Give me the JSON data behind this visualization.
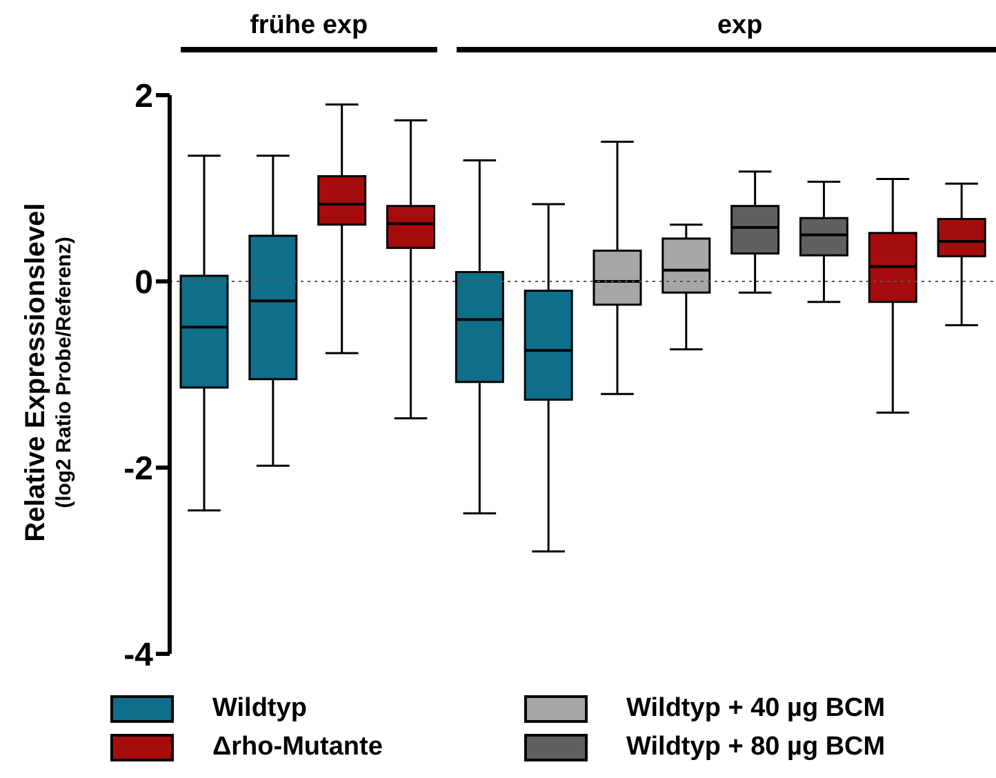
{
  "chart_data": {
    "type": "box",
    "ylabel": "Relative Expressionslevel\n(log2 Ratio Probe/Referenz)",
    "categories": [
      null,
      null,
      null,
      null,
      null,
      null,
      null,
      null,
      null,
      null,
      null,
      null
    ],
    "ylim": [
      -4,
      2
    ],
    "yticks": [
      -4,
      -2,
      0,
      2
    ],
    "tick_labels": "y",
    "legend": "bottom",
    "annotations": [
      "frühe exp",
      "exp"
    ],
    "ref_lines": [
      {
        "axis": "y",
        "value": 0,
        "line_style": "dotted",
        "color": "#555555"
      }
    ],
    "series": [
      {
        "name": "Wildtyp",
        "color": "#0e6f8a",
        "boxes": [
          {
            "low": -2.46,
            "q1": -1.14,
            "median": -0.49,
            "q3": 0.06,
            "high": 1.35
          },
          {
            "low": -1.98,
            "q1": -1.05,
            "median": -0.21,
            "q3": 0.49,
            "high": 1.35
          },
          null,
          null,
          {
            "low": -2.49,
            "q1": -1.08,
            "median": -0.41,
            "q3": 0.1,
            "high": 1.3
          },
          {
            "low": -2.9,
            "q1": -1.27,
            "median": -0.74,
            "q3": -0.1,
            "high": 0.83
          },
          null,
          null,
          null,
          null,
          null,
          null
        ]
      },
      {
        "name": "Δrho-Mutante",
        "color": "#a50d0d",
        "boxes": [
          null,
          null,
          {
            "low": -0.77,
            "q1": 0.61,
            "median": 0.83,
            "q3": 1.13,
            "high": 1.9
          },
          {
            "low": -1.47,
            "q1": 0.36,
            "median": 0.62,
            "q3": 0.81,
            "high": 1.73
          },
          null,
          null,
          null,
          null,
          null,
          null,
          {
            "low": -1.41,
            "q1": -0.22,
            "median": 0.16,
            "q3": 0.52,
            "high": 1.1
          },
          {
            "low": -0.47,
            "q1": 0.27,
            "median": 0.43,
            "q3": 0.67,
            "high": 1.05
          }
        ]
      },
      {
        "name": "Wildtyp + 40 µg BCM",
        "color": "#a6a6a6",
        "boxes": [
          null,
          null,
          null,
          null,
          null,
          null,
          {
            "low": -1.21,
            "q1": -0.25,
            "median": 0,
            "q3": 0.33,
            "high": 1.5
          },
          {
            "low": -0.73,
            "q1": -0.12,
            "median": 0.12,
            "q3": 0.46,
            "high": 0.61
          },
          null,
          null,
          null,
          null
        ]
      },
      {
        "name": "Wildtyp + 80 µg BCM",
        "color": "#606060",
        "boxes": [
          null,
          null,
          null,
          null,
          null,
          null,
          null,
          null,
          {
            "low": -0.12,
            "q1": 0.3,
            "median": 0.58,
            "q3": 0.81,
            "high": 1.18
          },
          {
            "low": -0.22,
            "q1": 0.28,
            "median": 0.5,
            "q3": 0.68,
            "high": 1.07
          },
          null,
          null
        ]
      }
    ]
  }
}
